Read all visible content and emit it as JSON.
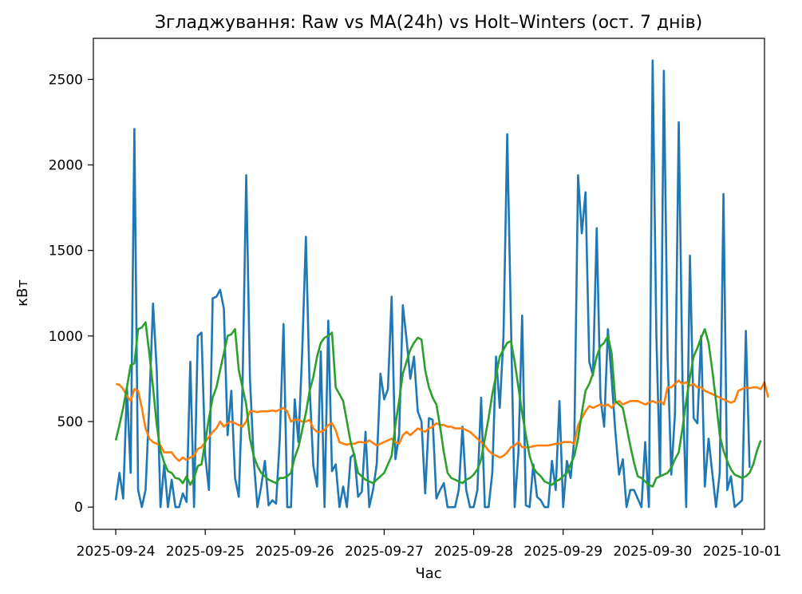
{
  "chart_data": {
    "type": "line",
    "title": "Згладжування: Raw vs MA(24h) vs Holt–Winters (ост. 7 днів)",
    "xlabel": "Час",
    "ylabel": "кВт",
    "xlim": [
      "2025-09-23T18:00",
      "2025-10-01T06:00"
    ],
    "ylim": [
      -130,
      2740
    ],
    "x_ticks": [
      "2025-09-24",
      "2025-09-25",
      "2025-09-26",
      "2025-09-27",
      "2025-09-28",
      "2025-09-29",
      "2025-09-30",
      "2025-10-01"
    ],
    "y_ticks": [
      0,
      500,
      1000,
      1500,
      2000,
      2500
    ],
    "legend": "none",
    "grid": false,
    "x_start": "2025-09-24T00:00",
    "x_step_hours": 1,
    "series": [
      {
        "color": "#1f77b4",
        "values": [
          40,
          200,
          50,
          700,
          200,
          2210,
          100,
          0,
          100,
          600,
          1190,
          800,
          0,
          250,
          0,
          160,
          0,
          0,
          80,
          30,
          850,
          0,
          1000,
          1020,
          300,
          100,
          1220,
          1230,
          1270,
          1160,
          420,
          680,
          170,
          60,
          700,
          1940,
          750,
          280,
          0,
          120,
          270,
          10,
          40,
          20,
          400,
          1070,
          0,
          0,
          630,
          380,
          900,
          1580,
          700,
          240,
          120,
          910,
          0,
          1090,
          210,
          250,
          0,
          120,
          0,
          290,
          310,
          60,
          90,
          440,
          0,
          100,
          250,
          780,
          630,
          690,
          1230,
          280,
          420,
          1180,
          980,
          750,
          880,
          560,
          500,
          80,
          520,
          510,
          50,
          100,
          140,
          0,
          0,
          0,
          100,
          470,
          100,
          0,
          0,
          100,
          640,
          0,
          0,
          200,
          880,
          580,
          1000,
          2180,
          1080,
          0,
          320,
          1120,
          10,
          0,
          250,
          60,
          40,
          0,
          0,
          270,
          100,
          620,
          0,
          270,
          170,
          400,
          1940,
          1600,
          1840,
          850,
          770,
          1630,
          640,
          470,
          1040,
          750,
          440,
          190,
          280,
          0,
          100,
          100,
          50,
          0,
          380,
          0,
          2610,
          1000,
          180,
          2550,
          900,
          190,
          550,
          2250,
          750,
          0,
          1470,
          520,
          490,
          1000,
          120,
          400,
          200,
          0,
          200,
          1830,
          100,
          180,
          0,
          20,
          40,
          1030,
          230
        ]
      },
      {
        "color": "#ff7f0e",
        "values": [
          720,
          715,
          690,
          650,
          620,
          690,
          680,
          580,
          460,
          400,
          380,
          370,
          360,
          320,
          320,
          320,
          290,
          270,
          290,
          275,
          290,
          300,
          340,
          350,
          380,
          410,
          440,
          460,
          500,
          470,
          490,
          500,
          490,
          480,
          470,
          500,
          560,
          560,
          555,
          560,
          560,
          560,
          565,
          560,
          570,
          580,
          560,
          500,
          510,
          510,
          500,
          500,
          510,
          460,
          440,
          440,
          450,
          480,
          490,
          450,
          380,
          370,
          365,
          370,
          370,
          380,
          380,
          375,
          390,
          375,
          360,
          370,
          380,
          390,
          400,
          380,
          370,
          420,
          440,
          420,
          440,
          460,
          450,
          440,
          460,
          470,
          490,
          480,
          480,
          470,
          470,
          460,
          460,
          460,
          450,
          440,
          420,
          400,
          380,
          360,
          330,
          310,
          300,
          290,
          300,
          320,
          350,
          360,
          380,
          350,
          350,
          350,
          355,
          360,
          360,
          360,
          360,
          365,
          370,
          370,
          380,
          380,
          380,
          370,
          480,
          520,
          560,
          590,
          580,
          590,
          600,
          590,
          600,
          580,
          610,
          620,
          600,
          610,
          620,
          620,
          620,
          610,
          600,
          610,
          620,
          610,
          620,
          600,
          700,
          700,
          720,
          740,
          720,
          730,
          710,
          720,
          700,
          700,
          680,
          670,
          660,
          650,
          640,
          630,
          620,
          610,
          620,
          680,
          690,
          700,
          695,
          700,
          700,
          690,
          730,
          640
        ]
      },
      {
        "color": "#2ca02c",
        "values": [
          390,
          480,
          580,
          700,
          830,
          840,
          1040,
          1050,
          1080,
          900,
          700,
          480,
          330,
          260,
          210,
          200,
          170,
          165,
          140,
          180,
          130,
          170,
          240,
          250,
          380,
          520,
          640,
          700,
          800,
          900,
          1000,
          1010,
          1040,
          800,
          700,
          600,
          400,
          300,
          240,
          200,
          180,
          160,
          150,
          140,
          170,
          170,
          180,
          200,
          290,
          350,
          450,
          550,
          680,
          760,
          880,
          960,
          990,
          1000,
          1020,
          700,
          660,
          620,
          500,
          380,
          300,
          200,
          180,
          160,
          150,
          140,
          160,
          180,
          200,
          250,
          300,
          480,
          620,
          780,
          850,
          920,
          960,
          990,
          980,
          800,
          700,
          640,
          600,
          470,
          320,
          200,
          170,
          160,
          150,
          140,
          160,
          170,
          190,
          220,
          280,
          400,
          520,
          660,
          770,
          880,
          920,
          960,
          970,
          850,
          700,
          550,
          420,
          300,
          230,
          200,
          180,
          150,
          140,
          130,
          150,
          160,
          180,
          200,
          250,
          300,
          400,
          550,
          680,
          720,
          780,
          880,
          940,
          960,
          1000,
          900,
          620,
          600,
          580,
          470,
          360,
          260,
          180,
          170,
          150,
          130,
          120,
          170,
          180,
          190,
          200,
          230,
          280,
          320,
          460,
          620,
          760,
          880,
          930,
          990,
          1040,
          960,
          800,
          620,
          420,
          330,
          270,
          220,
          190,
          180,
          170,
          180,
          200,
          250,
          330,
          390
        ]
      }
    ]
  }
}
